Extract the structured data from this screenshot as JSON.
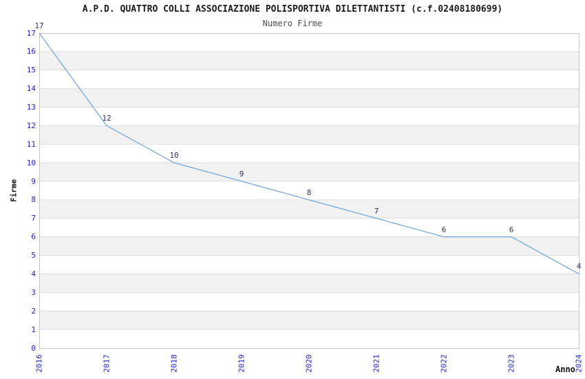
{
  "header": {
    "title": "A.P.D. QUATTRO COLLI ASSOCIAZIONE POLISPORTIVA DILETTANTISTI (c.f.02408180699)",
    "subtitle": "Numero Firme"
  },
  "chart_data": {
    "type": "line",
    "title": "A.P.D. QUATTRO COLLI ASSOCIAZIONE POLISPORTIVA DILETTANTISTI (c.f.02408180699)",
    "subtitle": "Numero Firme",
    "xlabel": "Anno",
    "ylabel": "Firme",
    "x": [
      2016,
      2017,
      2018,
      2019,
      2020,
      2021,
      2022,
      2023,
      2024
    ],
    "xticks": [
      "2016",
      "2017",
      "2018",
      "2019",
      "2020",
      "2021",
      "2022",
      "2023",
      "2024"
    ],
    "series": [
      {
        "name": "Numero Firme",
        "values": [
          17,
          12,
          10,
          9,
          8,
          7,
          6,
          6,
          4
        ]
      }
    ],
    "data_labels": [
      "17",
      "12",
      "10",
      "9",
      "8",
      "7",
      "6",
      "6",
      "4"
    ],
    "ylim": [
      0,
      17
    ],
    "ytick_step": 1,
    "grid": true,
    "grid_bands": "alternating horizontal bands, gray on odd-to-even unit rows",
    "legend": false,
    "colors": {
      "line": "#74a9dc",
      "tick_label": "#2222cc",
      "data_label": "#333366",
      "band": "#f2f2f2",
      "gridline": "#dcdcdc",
      "border": "#c6c6c6",
      "title": "#1a1a1a",
      "subtitle": "#4d4d4d",
      "axis_label": "#111111"
    }
  }
}
